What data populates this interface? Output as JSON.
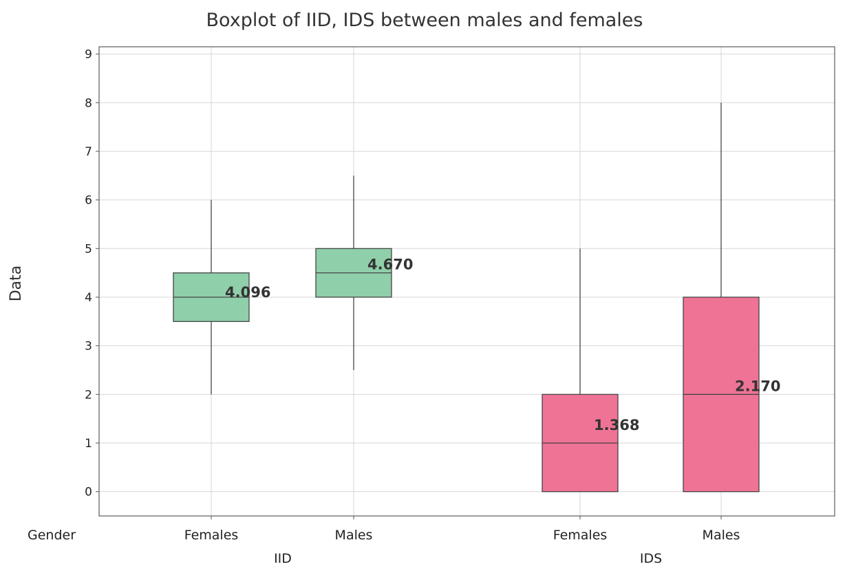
{
  "chart_data": {
    "type": "boxplot",
    "title": "Boxplot of IID, IDS between males and females",
    "ylabel": "Data",
    "ylim": [
      -0.5,
      9.15
    ],
    "yticks": [
      0,
      1,
      2,
      3,
      4,
      5,
      6,
      7,
      8,
      9
    ],
    "grid": true,
    "x_axis_label": "Gender",
    "groups": [
      {
        "name": "IID",
        "color": "#8fcfaa"
      },
      {
        "name": "IDS",
        "color": "#ef7395"
      }
    ],
    "boxes": [
      {
        "group": "IID",
        "category": "Females",
        "whisker_low": 2,
        "q1": 3.5,
        "median": 4,
        "q3": 4.5,
        "whisker_high": 6,
        "mean_label": "4.096",
        "mean": 4.096
      },
      {
        "group": "IID",
        "category": "Males",
        "whisker_low": 2.5,
        "q1": 4,
        "median": 4.5,
        "q3": 5,
        "whisker_high": 6.5,
        "mean_label": "4.670",
        "mean": 4.67
      },
      {
        "group": "IDS",
        "category": "Females",
        "whisker_low": 0,
        "q1": 0,
        "median": 1,
        "q3": 2,
        "whisker_high": 5,
        "mean_label": "1.368",
        "mean": 1.368
      },
      {
        "group": "IDS",
        "category": "Males",
        "whisker_low": 0,
        "q1": 0,
        "median": 2,
        "q3": 4,
        "whisker_high": 8,
        "mean_label": "2.170",
        "mean": 2.17
      }
    ]
  }
}
